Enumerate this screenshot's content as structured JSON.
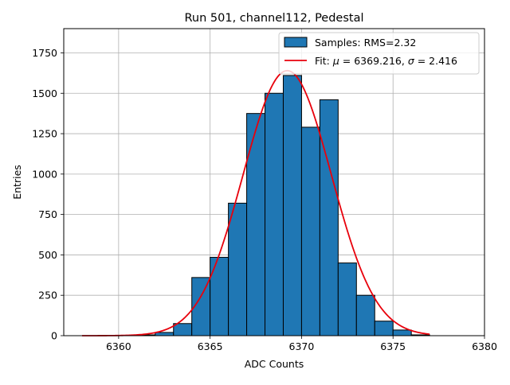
{
  "chart_data": {
    "type": "bar",
    "title": "Run 501, channel112, Pedestal",
    "xlabel": "ADC Counts",
    "ylabel": "Entries",
    "xlim": [
      6357,
      6380
    ],
    "ylim": [
      0,
      1900
    ],
    "xticks": [
      6360,
      6365,
      6370,
      6375,
      6380
    ],
    "yticks": [
      0,
      250,
      500,
      750,
      1000,
      1250,
      1500,
      1750
    ],
    "grid": true,
    "legend_position": "top-right",
    "bin_edges": [
      6360,
      6361,
      6362,
      6363,
      6364,
      6365,
      6366,
      6367,
      6368,
      6369,
      6370,
      6371,
      6372,
      6373,
      6374,
      6375,
      6376,
      6377
    ],
    "values": [
      0,
      5,
      20,
      75,
      360,
      485,
      820,
      1375,
      1500,
      1610,
      1290,
      1460,
      450,
      250,
      90,
      35,
      5
    ],
    "series": [
      {
        "name": "Samples: RMS=2.32",
        "type": "histogram",
        "color": "#1f77b4",
        "edge_color": "#000000"
      },
      {
        "name": "Fit: μ = 6369.216, σ = 2.416",
        "name_parts": [
          "Fit: ",
          "μ",
          " = 6369.216, ",
          "σ",
          " = 2.416"
        ],
        "type": "line",
        "color": "#e8000b",
        "mu": 6369.216,
        "sigma": 2.416,
        "amplitude": 1640,
        "x_range": [
          6358,
          6377
        ]
      }
    ]
  }
}
